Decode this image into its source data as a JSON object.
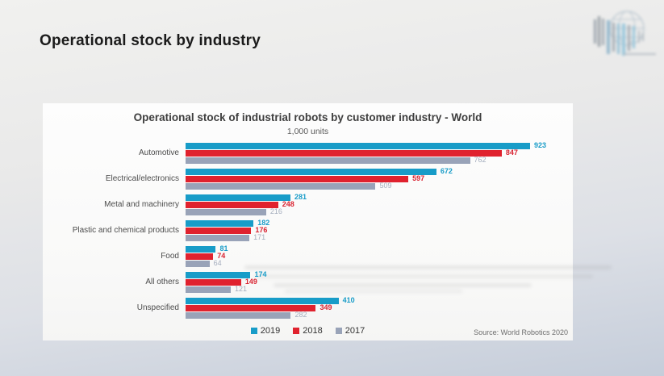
{
  "page": {
    "header_title": "Operational stock by industry"
  },
  "icons": {
    "logo": "globe-with-bar-code-logo"
  },
  "chart_data": {
    "type": "bar",
    "orientation": "horizontal",
    "title": "Operational stock of industrial robots by customer industry - World",
    "subtitle": "1,000 units",
    "categories": [
      "Automotive",
      "Electrical/electronics",
      "Metal and machinery",
      "Plastic and chemical products",
      "Food",
      "All others",
      "Unspecified"
    ],
    "series": [
      {
        "name": "2019",
        "color": "#189cc8",
        "label_color": "#189cc8",
        "label_bold": true,
        "values": [
          923,
          672,
          281,
          182,
          81,
          174,
          410
        ]
      },
      {
        "name": "2018",
        "color": "#e0222e",
        "label_color": "#d92230",
        "label_bold": true,
        "values": [
          847,
          597,
          248,
          176,
          74,
          149,
          349
        ]
      },
      {
        "name": "2017",
        "color": "#99a3b8",
        "label_color": "#a4adbd",
        "label_bold": false,
        "values": [
          762,
          509,
          216,
          171,
          64,
          121,
          282
        ]
      }
    ],
    "xmax": 923,
    "xlim": [
      0,
      923
    ],
    "grid": false,
    "legend_position": "bottom-center",
    "source": "Source: World Robotics 2020"
  }
}
